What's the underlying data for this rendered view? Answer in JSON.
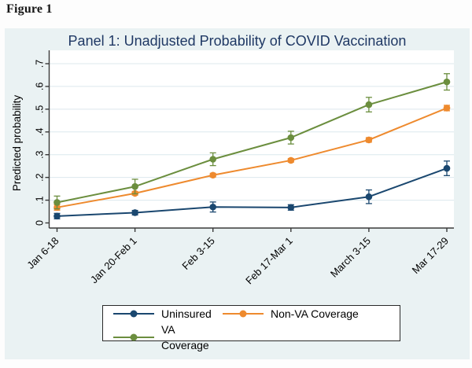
{
  "figure_label": "Figure 1",
  "chart_data": {
    "type": "line",
    "title": "Panel 1: Unadjusted Probability of COVID Vaccination",
    "title_color": "#1f3864",
    "background_color": "#eaf2f3",
    "plot_background": "#ffffff",
    "gridline_color": "#dce8ed",
    "axis_color": "#3a3a3a",
    "ylabel": "Predicted probability",
    "xlabel": "",
    "ylim": [
      0,
      0.7
    ],
    "ytick_labels": [
      "0",
      ".1",
      ".2",
      ".3",
      ".4",
      ".5",
      ".6",
      ".7"
    ],
    "ytick_values": [
      0,
      0.1,
      0.2,
      0.3,
      0.4,
      0.5,
      0.6,
      0.7
    ],
    "grid": "horizontal",
    "legend_position": "bottom",
    "legend_rows": [
      [
        "Uninsured",
        "Non-VA Coverage"
      ],
      [
        "VA Coverage"
      ]
    ],
    "categories": [
      "Jan 6-18",
      "Jan 20-Feb 1",
      "Feb 3-15",
      "Feb 17-Mar 1",
      "March 3-15",
      "Mar 17-29"
    ],
    "series": [
      {
        "name": "Uninsured",
        "color": "#1a476f",
        "values": [
          0.03,
          0.045,
          0.07,
          0.068,
          0.115,
          0.24
        ],
        "ci": [
          0.012,
          0.01,
          0.022,
          0.012,
          0.03,
          0.032
        ]
      },
      {
        "name": "Non-VA Coverage",
        "color": "#ee8a2e",
        "values": [
          0.068,
          0.13,
          0.21,
          0.275,
          0.365,
          0.505
        ],
        "ci": [
          0.012,
          0.008,
          0.008,
          0.008,
          0.01,
          0.012
        ]
      },
      {
        "name": "VA Coverage",
        "color": "#6b8e3e",
        "values": [
          0.09,
          0.16,
          0.28,
          0.375,
          0.52,
          0.62
        ],
        "ci": [
          0.028,
          0.032,
          0.028,
          0.028,
          0.032,
          0.036
        ]
      }
    ]
  }
}
